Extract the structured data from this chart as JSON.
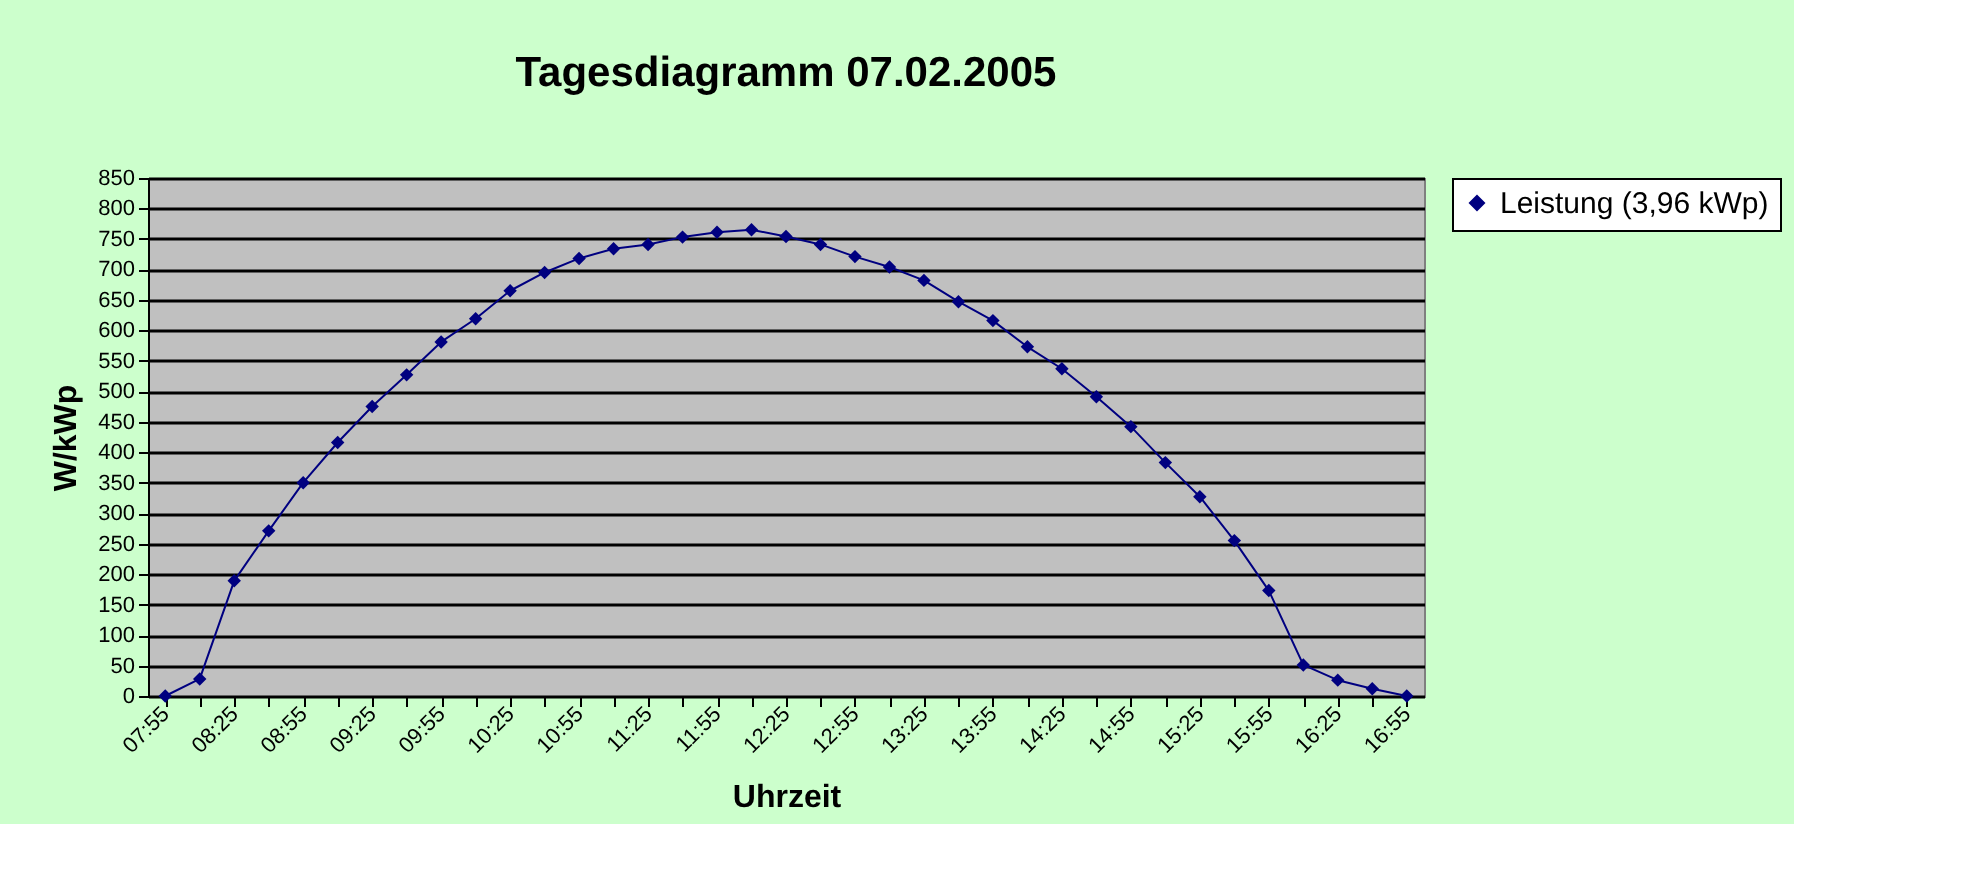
{
  "chart_data": {
    "type": "line",
    "title": "Tagesdiagramm 07.02.2005",
    "xlabel": "Uhrzeit",
    "ylabel": "W/kWp",
    "categories": [
      "07:55",
      null,
      "08:25",
      null,
      "08:55",
      null,
      "09:25",
      null,
      "09:55",
      null,
      "10:25",
      null,
      "10:55",
      null,
      "11:25",
      null,
      "11:55",
      null,
      "12:25",
      null,
      "12:55",
      null,
      "13:25",
      null,
      "13:55",
      null,
      "14:25",
      null,
      "14:55",
      null,
      "15:25",
      null,
      "15:55",
      null,
      "16:25",
      null,
      "16:55"
    ],
    "series": [
      {
        "name": "Leistung (3,96 kWp)",
        "color": "#000080",
        "values": [
          0,
          28,
          189,
          271,
          350,
          416,
          475,
          527,
          581,
          619,
          665,
          695,
          718,
          734,
          741,
          753,
          761,
          765,
          754,
          741,
          721,
          704,
          682,
          647,
          616,
          573,
          537,
          491,
          442,
          383,
          327,
          255,
          173,
          51,
          26,
          12,
          0
        ]
      }
    ],
    "ylim": [
      0,
      850
    ],
    "yticks": [
      0,
      50,
      100,
      150,
      200,
      250,
      300,
      350,
      400,
      450,
      500,
      550,
      600,
      650,
      700,
      750,
      800,
      850
    ],
    "grid": "y",
    "legend": "right",
    "marker": "diamond",
    "line_style": "solid"
  }
}
